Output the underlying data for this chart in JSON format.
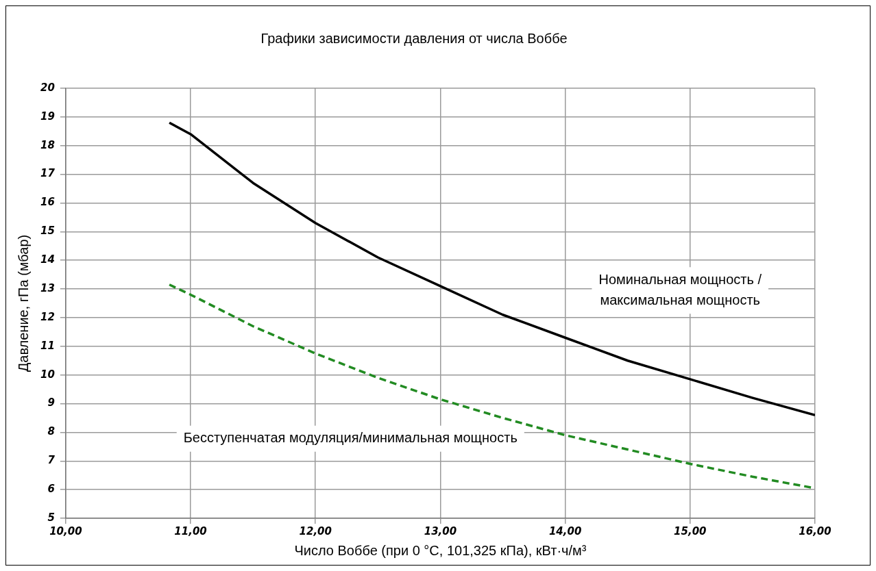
{
  "chart_data": {
    "type": "line",
    "title": "Графики зависимости давления от числа Воббе",
    "xlabel": "Число Воббе (при 0 °C, 101,325 кПа), кВт·ч/м³",
    "ylabel": "Давление, гПа (мбар)",
    "x": [
      10.83,
      11.0,
      11.5,
      12.0,
      12.5,
      13.0,
      13.5,
      14.0,
      14.5,
      15.0,
      15.5,
      16.0
    ],
    "series": [
      {
        "name": "Номинальная мощность /\nмаксимальная мощность",
        "color": "#000000",
        "line_style": "solid",
        "values": [
          18.8,
          18.4,
          16.7,
          15.3,
          14.1,
          13.1,
          12.1,
          11.3,
          10.5,
          9.85,
          9.2,
          8.6
        ]
      },
      {
        "name": "Бесступенчатая модуляция/минимальная мощность",
        "color": "#228b22",
        "line_style": "dashed",
        "values": [
          13.15,
          12.8,
          11.7,
          10.75,
          9.9,
          9.15,
          8.5,
          7.9,
          7.4,
          6.9,
          6.45,
          6.05
        ]
      }
    ],
    "xlim": [
      10,
      16
    ],
    "xticks": [
      {
        "value": 10,
        "label": "10,00"
      },
      {
        "value": 11,
        "label": "11,00"
      },
      {
        "value": 12,
        "label": "12,00"
      },
      {
        "value": 13,
        "label": "13,00"
      },
      {
        "value": 14,
        "label": "14,00"
      },
      {
        "value": 15,
        "label": "15,00"
      },
      {
        "value": 16,
        "label": "16,00"
      }
    ],
    "ylim": [
      5,
      20
    ],
    "yticks": [
      5,
      6,
      7,
      8,
      9,
      10,
      11,
      12,
      13,
      14,
      15,
      16,
      17,
      18,
      19,
      20
    ],
    "grid": true,
    "legend": false,
    "marker": "none"
  }
}
